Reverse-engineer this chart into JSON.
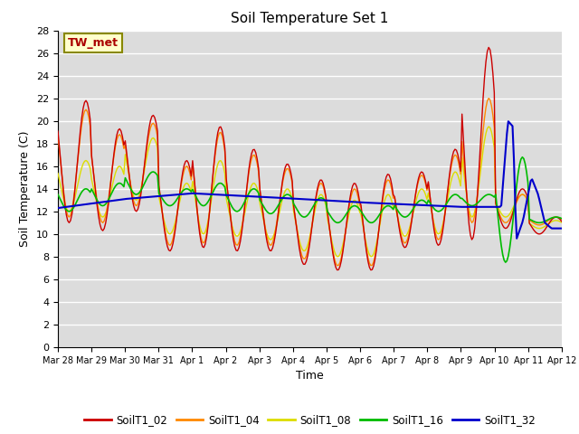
{
  "title": "Soil Temperature Set 1",
  "xlabel": "Time",
  "ylabel": "Soil Temperature (C)",
  "ylim": [
    0,
    28
  ],
  "yticks": [
    0,
    2,
    4,
    6,
    8,
    10,
    12,
    14,
    16,
    18,
    20,
    22,
    24,
    26,
    28
  ],
  "colors": {
    "SoilT1_02": "#cc0000",
    "SoilT1_04": "#ff8800",
    "SoilT1_08": "#dddd00",
    "SoilT1_16": "#00bb00",
    "SoilT1_32": "#0000cc"
  },
  "legend_labels": [
    "SoilT1_02",
    "SoilT1_04",
    "SoilT1_08",
    "SoilT1_16",
    "SoilT1_32"
  ],
  "annotation_text": "TW_met",
  "annotation_color": "#aa0000",
  "background_color": "#dcdcdc",
  "grid_color": "#ffffff",
  "x_tick_labels": [
    "Mar 28",
    "Mar 29",
    "Mar 30",
    "Mar 31",
    "Apr 1",
    "Apr 2",
    "Apr 3",
    "Apr 4",
    "Apr 5",
    "Apr 6",
    "Apr 7",
    "Apr 8",
    "Apr 9",
    "Apr 10",
    "Apr 11",
    "Apr 12"
  ]
}
